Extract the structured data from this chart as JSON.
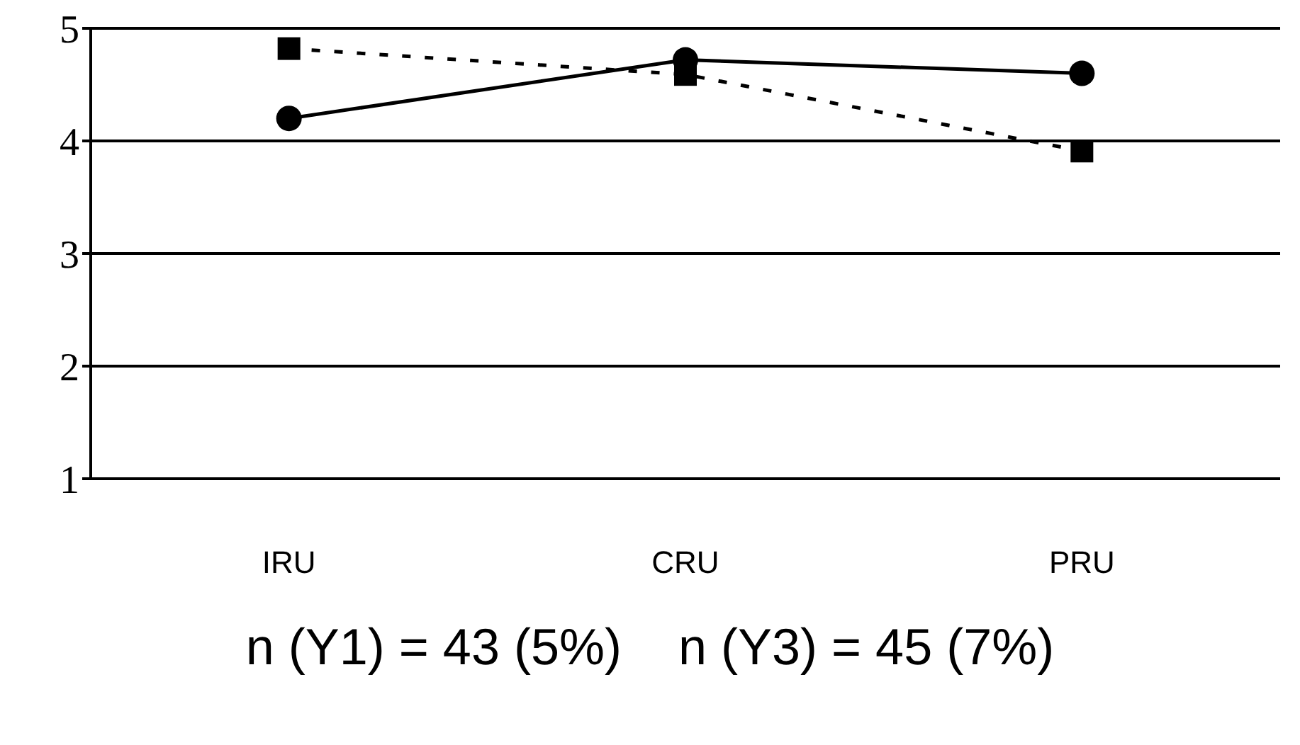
{
  "chart_data": {
    "type": "line",
    "categories": [
      "IRU",
      "CRU",
      "PRU"
    ],
    "series": [
      {
        "color": "#000000",
        "values": [
          4.2,
          4.72,
          4.6
        ],
        "marker": "circle",
        "line_style": "solid"
      },
      {
        "color": "#000000",
        "values": [
          4.82,
          4.59,
          3.91
        ],
        "marker": "square",
        "line_style": "dashed"
      }
    ],
    "ylim": [
      1,
      5
    ],
    "yticks": [
      1,
      2,
      3,
      4,
      5
    ],
    "grid": "y",
    "annotations": [
      "n (Y1) = 43 (5%)",
      "n (Y3) = 45 (7%)"
    ]
  }
}
